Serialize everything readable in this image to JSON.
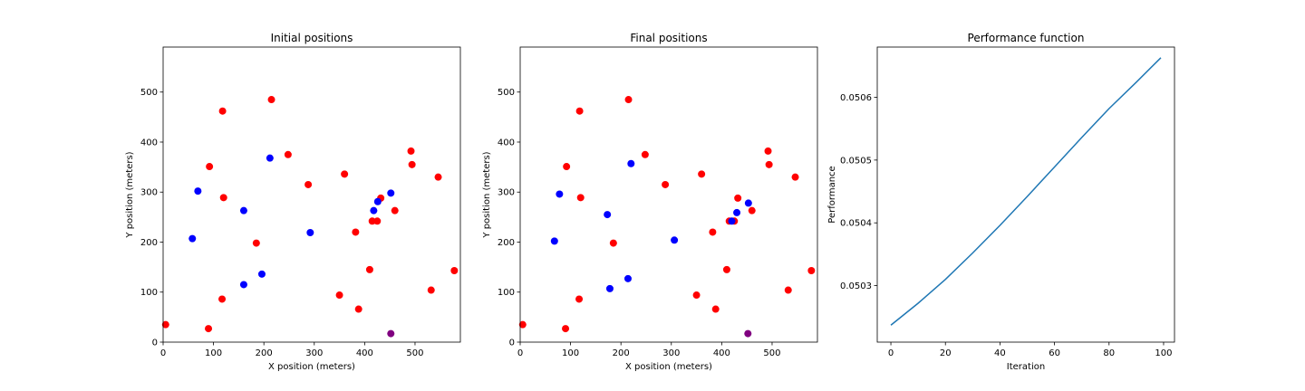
{
  "colors": {
    "red": "#ff0000",
    "blue": "#0000ff",
    "purple": "#800080",
    "line": "#1f77b4",
    "axis": "#000000"
  },
  "chart_data": [
    {
      "type": "scatter",
      "title": "Initial positions",
      "xlabel": "X position (meters)",
      "ylabel": "Y position (meters)",
      "xlim": [
        0,
        590
      ],
      "ylim": [
        0,
        590
      ],
      "xticks": [
        0,
        100,
        200,
        300,
        400,
        500
      ],
      "yticks": [
        0,
        100,
        200,
        300,
        400,
        500
      ],
      "grid": false,
      "series": [
        {
          "color": "#ff0000",
          "points": [
            [
              5,
              35
            ],
            [
              90,
              27
            ],
            [
              117,
              86
            ],
            [
              92,
              351
            ],
            [
              118,
              462
            ],
            [
              120,
              289
            ],
            [
              185,
              198
            ],
            [
              215,
              485
            ],
            [
              248,
              375
            ],
            [
              288,
              315
            ],
            [
              350,
              94
            ],
            [
              360,
              336
            ],
            [
              382,
              220
            ],
            [
              388,
              66
            ],
            [
              410,
              145
            ],
            [
              415,
              242
            ],
            [
              425,
              242
            ],
            [
              432,
              288
            ],
            [
              460,
              263
            ],
            [
              492,
              382
            ],
            [
              494,
              355
            ],
            [
              532,
              104
            ],
            [
              546,
              330
            ],
            [
              578,
              143
            ]
          ]
        },
        {
          "color": "#0000ff",
          "points": [
            [
              58,
              207
            ],
            [
              69,
              302
            ],
            [
              160,
              263
            ],
            [
              160,
              115
            ],
            [
              196,
              136
            ],
            [
              212,
              368
            ],
            [
              292,
              219
            ],
            [
              418,
              263
            ],
            [
              426,
              281
            ],
            [
              452,
              298
            ]
          ]
        },
        {
          "color": "#800080",
          "points": [
            [
              452,
              17
            ]
          ]
        }
      ]
    },
    {
      "type": "scatter",
      "title": "Final positions",
      "xlabel": "X position (meters)",
      "ylabel": "Y position (meters)",
      "xlim": [
        0,
        590
      ],
      "ylim": [
        0,
        590
      ],
      "xticks": [
        0,
        100,
        200,
        300,
        400,
        500
      ],
      "yticks": [
        0,
        100,
        200,
        300,
        400,
        500
      ],
      "grid": false,
      "series": [
        {
          "color": "#ff0000",
          "points": [
            [
              5,
              35
            ],
            [
              90,
              27
            ],
            [
              117,
              86
            ],
            [
              92,
              351
            ],
            [
              118,
              462
            ],
            [
              120,
              289
            ],
            [
              185,
              198
            ],
            [
              215,
              485
            ],
            [
              248,
              375
            ],
            [
              288,
              315
            ],
            [
              350,
              94
            ],
            [
              360,
              336
            ],
            [
              382,
              220
            ],
            [
              388,
              66
            ],
            [
              410,
              145
            ],
            [
              415,
              242
            ],
            [
              425,
              242
            ],
            [
              432,
              288
            ],
            [
              460,
              263
            ],
            [
              492,
              382
            ],
            [
              494,
              355
            ],
            [
              532,
              104
            ],
            [
              546,
              330
            ],
            [
              578,
              143
            ]
          ]
        },
        {
          "color": "#0000ff",
          "points": [
            [
              68,
              202
            ],
            [
              78,
              296
            ],
            [
              173,
              255
            ],
            [
              178,
              107
            ],
            [
              214,
              127
            ],
            [
              220,
              357
            ],
            [
              306,
              204
            ],
            [
              420,
              242
            ],
            [
              430,
              259
            ],
            [
              453,
              278
            ]
          ]
        },
        {
          "color": "#800080",
          "points": [
            [
              452,
              17
            ]
          ]
        }
      ]
    },
    {
      "type": "line",
      "title": "Performance function",
      "xlabel": "Iteration",
      "ylabel": "Performance",
      "xlim": [
        -5,
        104
      ],
      "ylim": [
        0.05021,
        0.05068
      ],
      "xticks": [
        0,
        20,
        40,
        60,
        80,
        100
      ],
      "yticks": [
        0.0503,
        0.0504,
        0.0505,
        0.0506
      ],
      "ytick_labels": [
        "0.0503",
        "0.0504",
        "0.0505",
        "0.0506"
      ],
      "grid": false,
      "series": [
        {
          "color": "#1f77b4",
          "x": [
            0,
            10,
            20,
            30,
            40,
            50,
            60,
            70,
            80,
            90,
            99
          ],
          "y": [
            0.050237,
            0.050272,
            0.05031,
            0.050352,
            0.050396,
            0.050442,
            0.050489,
            0.050536,
            0.050582,
            0.050624,
            0.050663
          ]
        }
      ]
    }
  ]
}
